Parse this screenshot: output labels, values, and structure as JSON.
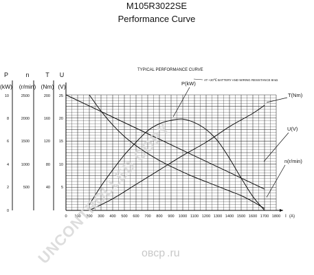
{
  "header": {
    "model": "M105R3022SE",
    "subtitle": "Performance Curve"
  },
  "chart_data": {
    "type": "line",
    "title": "TYPICAL PERFORMANCE CURVE",
    "note": "AT +20℃ BATTERY AND WIRING RESISTANCE 8mΩ",
    "xlabel": "I",
    "xunit": "(A)",
    "x_ticks": [
      0,
      100,
      200,
      300,
      400,
      500,
      600,
      700,
      800,
      900,
      1000,
      1100,
      1200,
      1300,
      1400,
      1500,
      1600,
      1700,
      1800
    ],
    "xlim": [
      0,
      1800
    ],
    "axes": [
      {
        "symbol": "P",
        "unit": "(kW)",
        "ticks": [
          "0",
          "2",
          "4",
          "6",
          "8",
          "10"
        ],
        "range": [
          0,
          10
        ]
      },
      {
        "symbol": "n",
        "unit": "(r/min)",
        "ticks": [
          "500",
          "1000",
          "1500",
          "2000",
          "2500"
        ],
        "range": [
          0,
          2500
        ]
      },
      {
        "symbol": "T",
        "unit": "(Nm)",
        "ticks": [
          "40",
          "80",
          "120",
          "160",
          "200"
        ],
        "range": [
          0,
          200
        ]
      },
      {
        "symbol": "U",
        "unit": "(V)",
        "ticks": [
          "5",
          "10",
          "15",
          "20",
          "25"
        ],
        "range": [
          0,
          25
        ]
      }
    ],
    "series": [
      {
        "name": "P(kW)",
        "axis": "P",
        "x": [
          200,
          300,
          400,
          500,
          600,
          700,
          800,
          900,
          1000,
          1100,
          1200,
          1300,
          1400,
          1500,
          1600,
          1700
        ],
        "y": [
          0.5,
          2.1,
          3.5,
          4.8,
          5.9,
          6.9,
          7.5,
          7.8,
          7.9,
          7.6,
          7.0,
          6.0,
          4.5,
          2.8,
          1.2,
          0.0
        ]
      },
      {
        "name": "T(Nm)",
        "axis": "T",
        "x": [
          200,
          400,
          600,
          800,
          1000,
          1200,
          1400,
          1600,
          1700
        ],
        "y": [
          0,
          20,
          45,
          70,
          95,
          118,
          145,
          168,
          182
        ]
      },
      {
        "name": "U(V)",
        "axis": "U",
        "x": [
          0,
          400,
          800,
          1200,
          1700
        ],
        "y": [
          25,
          20.2,
          15.4,
          10.6,
          4.6
        ]
      },
      {
        "name": "n(r/min)",
        "axis": "n",
        "x": [
          200,
          300,
          400,
          500,
          600,
          700,
          800,
          900,
          1000,
          1100,
          1200,
          1300,
          1400,
          1500,
          1600,
          1700
        ],
        "y": [
          2500,
          2150,
          1850,
          1600,
          1400,
          1230,
          1080,
          950,
          830,
          720,
          620,
          520,
          420,
          320,
          190,
          40
        ]
      }
    ]
  },
  "watermark": {
    "text": "UNCONTROLLED COPY",
    "brand": "овср",
    "brand_suffix": ".ru"
  }
}
